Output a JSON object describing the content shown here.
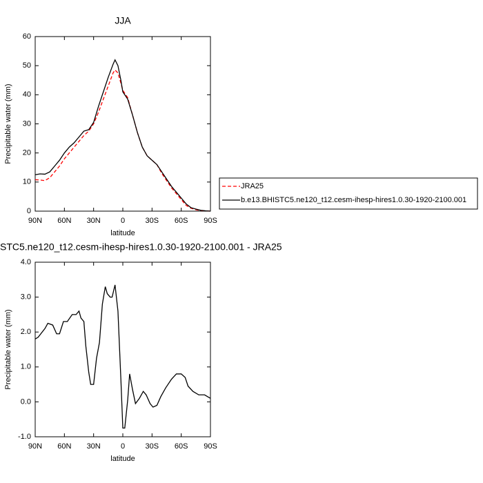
{
  "chart_data": [
    {
      "type": "line",
      "title": "JJA",
      "x_label": "latitude",
      "y_label": "Precipitable water (mm)",
      "x": [
        90,
        85,
        80,
        75,
        70,
        65,
        60,
        55,
        50,
        45,
        40,
        35,
        30,
        25,
        20,
        15,
        10,
        8,
        5,
        2,
        0,
        -5,
        -10,
        -15,
        -20,
        -25,
        -30,
        -35,
        -40,
        -45,
        -50,
        -55,
        -60,
        -65,
        -70,
        -75,
        -80,
        -85,
        -90
      ],
      "series": [
        {
          "name": "JRA25",
          "color": "#ff0000",
          "line_style": "dashed",
          "values": [
            10.8,
            10.7,
            10.5,
            11.5,
            13.5,
            15.5,
            18,
            20,
            22,
            24,
            26,
            27.5,
            30,
            34,
            38.5,
            43,
            47.5,
            48.5,
            47.5,
            44,
            41.5,
            39,
            33,
            27,
            22,
            19,
            17.5,
            16,
            13,
            10.5,
            8,
            6,
            4,
            2,
            1,
            0.5,
            0.2,
            0.1,
            0
          ]
        },
        {
          "name": "b.e13.BHISTC5.ne120_t12.cesm-ihesp-hires1.0.30-1920-2100.001",
          "color": "#000000",
          "line_style": "solid",
          "values": [
            12.5,
            12.8,
            12.7,
            13.5,
            15.5,
            17.5,
            20,
            22,
            23.5,
            25.5,
            27.5,
            28,
            30.5,
            36,
            41,
            46,
            50.5,
            52,
            50,
            45,
            41,
            38.5,
            33,
            27,
            22,
            19,
            17.5,
            16,
            13.5,
            11,
            8.5,
            6.5,
            4.5,
            2.5,
            1.2,
            0.7,
            0.3,
            0.1,
            0
          ]
        }
      ],
      "xlim": [
        90,
        -90
      ],
      "xticks": [
        {
          "value": 90,
          "label": "90N"
        },
        {
          "value": 60,
          "label": "60N"
        },
        {
          "value": 30,
          "label": "30N"
        },
        0,
        {
          "value": -30,
          "label": "30S"
        },
        {
          "value": -60,
          "label": "60S"
        },
        {
          "value": -90,
          "label": "90S"
        }
      ],
      "ylim": [
        0,
        60
      ],
      "yticks": [
        0,
        10,
        20,
        30,
        40,
        50,
        60
      ],
      "legend": "right"
    },
    {
      "type": "line",
      "title": "STC5.ne120_t12.cesm-ihesp-hires1.0.30-1920-2100.001 - JRA25",
      "x_label": "latitude",
      "y_label": "Precipitable water (mm)",
      "x": [
        90,
        87,
        80,
        77,
        72,
        68,
        65,
        61,
        57,
        52,
        48,
        45,
        43,
        40,
        38,
        35,
        33,
        30,
        27,
        24,
        21,
        18,
        16,
        13,
        11,
        8,
        5,
        2,
        0,
        -2,
        -5,
        -7,
        -10,
        -13,
        -17,
        -21,
        -24,
        -28,
        -31,
        -35,
        -39,
        -44,
        -50,
        -55,
        -60,
        -64,
        -67,
        -72,
        -78,
        -84,
        -90
      ],
      "series": [
        {
          "name": null,
          "color": "#000000",
          "line_style": "solid",
          "values": [
            1.8,
            1.85,
            2.1,
            2.25,
            2.2,
            1.95,
            1.95,
            2.3,
            2.3,
            2.5,
            2.5,
            2.6,
            2.4,
            2.3,
            1.6,
            0.85,
            0.5,
            0.5,
            1.25,
            1.7,
            2.8,
            3.3,
            3.1,
            3.0,
            3.0,
            3.35,
            2.6,
            0.65,
            -0.75,
            -0.75,
            0.05,
            0.8,
            0.35,
            -0.05,
            0.1,
            0.3,
            0.2,
            -0.05,
            -0.15,
            -0.1,
            0.15,
            0.4,
            0.65,
            0.8,
            0.8,
            0.7,
            0.45,
            0.3,
            0.2,
            0.2,
            0.1
          ]
        }
      ],
      "xlim": [
        90,
        -90
      ],
      "xticks": [
        {
          "value": 90,
          "label": "90N"
        },
        {
          "value": 60,
          "label": "60N"
        },
        {
          "value": 30,
          "label": "30N"
        },
        0,
        {
          "value": -30,
          "label": "30S"
        },
        {
          "value": -60,
          "label": "60S"
        },
        {
          "value": -90,
          "label": "90S"
        }
      ],
      "ylim": [
        -1,
        4
      ],
      "yticks": [
        {
          "value": -1,
          "label": "-1.0"
        },
        {
          "value": 0,
          "label": "0.0"
        },
        {
          "value": 1,
          "label": "1.0"
        },
        {
          "value": 2,
          "label": "2.0"
        },
        {
          "value": 3,
          "label": "3.0"
        },
        {
          "value": 4,
          "label": "4.0"
        }
      ]
    }
  ]
}
